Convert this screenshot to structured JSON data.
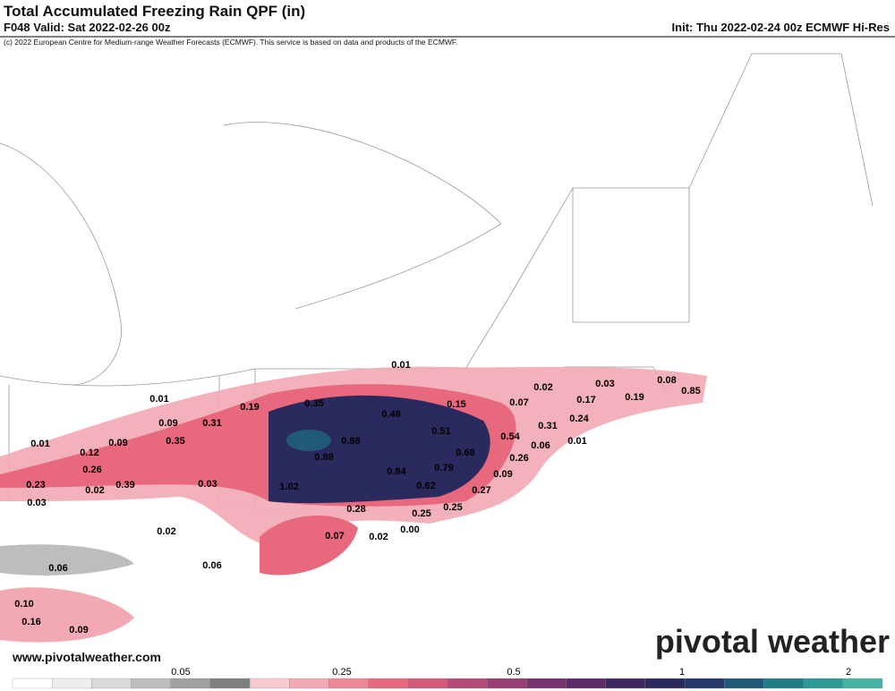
{
  "header": {
    "title": "Total Accumulated Freezing Rain QPF (in)",
    "valid": "F048 Valid: Sat 2022-02-26 00z",
    "init": "Init: Thu 2022-02-24 00z ECMWF Hi-Res",
    "copyright": "(c) 2022 European Centre for Medium-range Weather Forecasts (ECMWF). This service is based on data and products of the ECMWF."
  },
  "map": {
    "labels": [
      "0.01",
      "0.02",
      "0.03",
      "0.08",
      "0.85",
      "0.17",
      "0.19",
      "0.07",
      "0.15",
      "0.01",
      "0.19",
      "0.35",
      "0.48",
      "0.24",
      "0.31",
      "0.09",
      "0.31",
      "0.51",
      "0.54",
      "0.06",
      "0.01",
      "0.01",
      "0.35",
      "0.88",
      "0.12",
      "0.09",
      "0.68",
      "0.88",
      "0.26",
      "0.26",
      "0.84",
      "0.79",
      "0.09",
      "0.23",
      "0.02",
      "0.39",
      "0.03",
      "1.02",
      "0.62",
      "0.27",
      "0.03",
      "0.28",
      "0.25",
      "0.25",
      "0.02",
      "0.07",
      "0.02",
      "0.00",
      "0.06",
      "0.06",
      "0.10",
      "0.16",
      "0.09"
    ]
  },
  "footer": {
    "website": "www.pivotalweather.com",
    "logo": "pivotal weather"
  },
  "colorbar": {
    "labels": [
      "0.05",
      "0.25",
      "0.5",
      "1",
      "2"
    ],
    "colors": [
      "#ffffff",
      "#eeeeee",
      "#d9d9d9",
      "#bdbdbd",
      "#a0a0a0",
      "#7f7f7f",
      "#f6c9cf",
      "#f2a9b4",
      "#ee8898",
      "#e8697d",
      "#d65a7a",
      "#b84a78",
      "#983d74",
      "#7a3170",
      "#5e2a6a",
      "#3f2762",
      "#2b2a5e",
      "#24386a",
      "#1f5a78",
      "#1f7d86",
      "#2a9a94",
      "#45b3a4"
    ]
  }
}
